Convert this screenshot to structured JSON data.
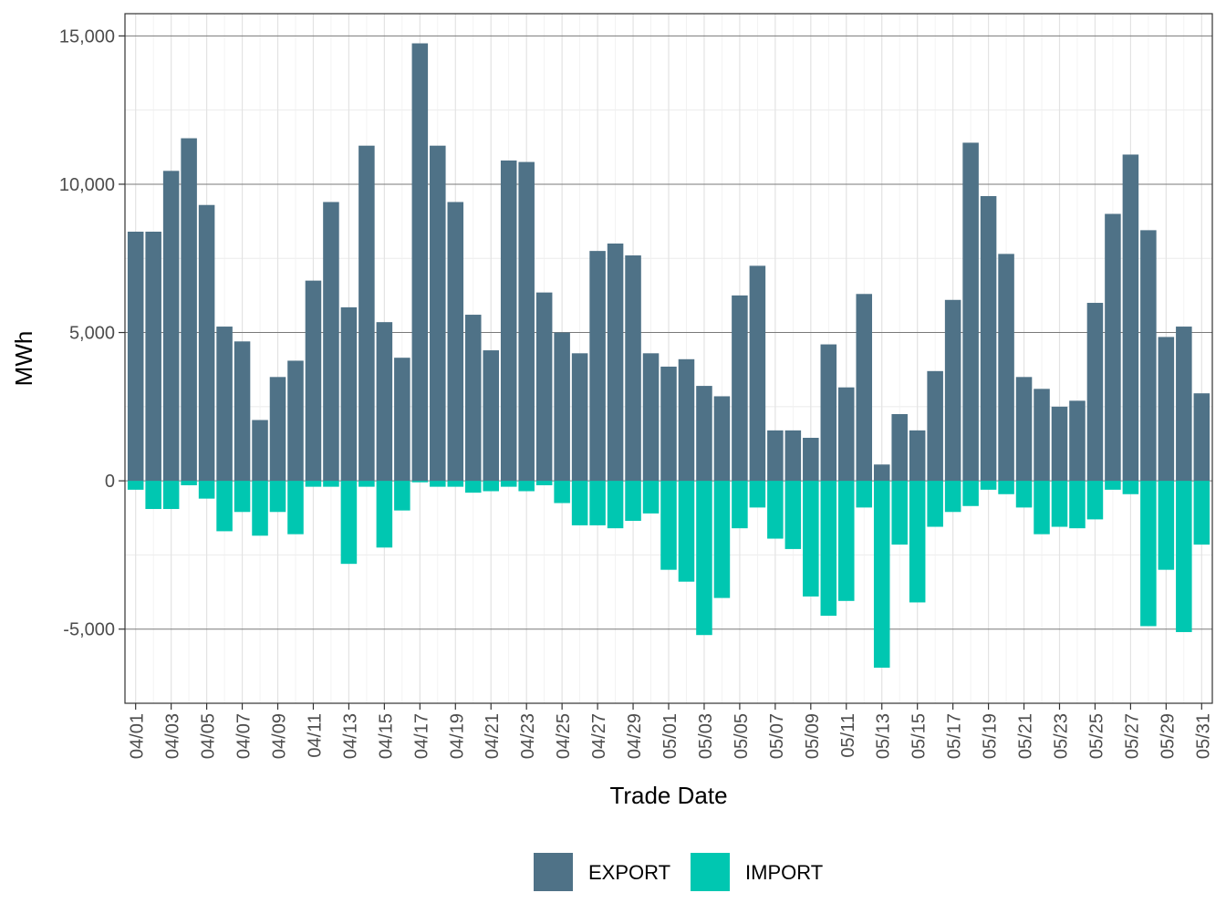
{
  "chart_data": {
    "type": "bar",
    "xlabel": "Trade Date",
    "ylabel": "MWh",
    "ylim": [
      -7500,
      15750
    ],
    "y_ticks": [
      -5000,
      0,
      5000,
      10000,
      15000
    ],
    "y_tick_labels": [
      "-5,000",
      "0",
      "5,000",
      "10,000",
      "15,000"
    ],
    "grid": true,
    "legend_position": "bottom",
    "categories": [
      "04/01",
      "04/02",
      "04/03",
      "04/04",
      "04/05",
      "04/06",
      "04/07",
      "04/08",
      "04/09",
      "04/10",
      "04/11",
      "04/12",
      "04/13",
      "04/14",
      "04/15",
      "04/16",
      "04/17",
      "04/18",
      "04/19",
      "04/20",
      "04/21",
      "04/22",
      "04/23",
      "04/24",
      "04/25",
      "04/26",
      "04/27",
      "04/28",
      "04/29",
      "04/30",
      "05/01",
      "05/02",
      "05/03",
      "05/04",
      "05/05",
      "05/06",
      "05/07",
      "05/08",
      "05/09",
      "05/10",
      "05/11",
      "05/12",
      "05/13",
      "05/14",
      "05/15",
      "05/16",
      "05/17",
      "05/18",
      "05/19",
      "05/20",
      "05/21",
      "05/22",
      "05/23",
      "05/24",
      "05/25",
      "05/26",
      "05/27",
      "05/28",
      "05/29",
      "05/30",
      "05/31"
    ],
    "x_tick_labels": [
      "04/01",
      "04/03",
      "04/05",
      "04/07",
      "04/09",
      "04/11",
      "04/13",
      "04/15",
      "04/17",
      "04/19",
      "04/21",
      "04/23",
      "04/25",
      "04/27",
      "04/29",
      "05/01",
      "05/03",
      "05/05",
      "05/07",
      "05/09",
      "05/11",
      "05/13",
      "05/15",
      "05/17",
      "05/19",
      "05/21",
      "05/23",
      "05/25",
      "05/27",
      "05/29",
      "05/31"
    ],
    "series": [
      {
        "name": "EXPORT",
        "color": "#4f7287",
        "values": [
          8400,
          8400,
          10450,
          11550,
          9300,
          5200,
          4700,
          2050,
          3500,
          4050,
          6750,
          9400,
          5850,
          11300,
          5350,
          4150,
          14750,
          11300,
          9400,
          5600,
          4400,
          10800,
          10750,
          6350,
          5000,
          4300,
          7750,
          8000,
          7600,
          4300,
          3850,
          4100,
          3200,
          2850,
          6250,
          7250,
          1700,
          1700,
          1450,
          4600,
          3150,
          6300,
          550,
          2250,
          1700,
          3700,
          6100,
          11400,
          9600,
          7650,
          3500,
          3100,
          2500,
          2700,
          6000,
          9000,
          11000,
          8450,
          4850,
          5200,
          2950
        ]
      },
      {
        "name": "IMPORT",
        "color": "#00c7b1",
        "values": [
          -300,
          -950,
          -950,
          -150,
          -600,
          -1700,
          -1050,
          -1850,
          -1050,
          -1800,
          -200,
          -200,
          -2800,
          -200,
          -2250,
          -1000,
          -50,
          -200,
          -200,
          -400,
          -350,
          -200,
          -350,
          -150,
          -750,
          -1500,
          -1500,
          -1600,
          -1350,
          -1100,
          -3000,
          -3400,
          -5200,
          -3950,
          -1600,
          -900,
          -1950,
          -2300,
          -3900,
          -4550,
          -4050,
          -900,
          -6300,
          -2150,
          -4100,
          -1550,
          -1050,
          -850,
          -300,
          -450,
          -900,
          -1800,
          -1550,
          -1600,
          -1300,
          -300,
          -450,
          -4900,
          -3000,
          -5100,
          -2150
        ]
      }
    ]
  }
}
